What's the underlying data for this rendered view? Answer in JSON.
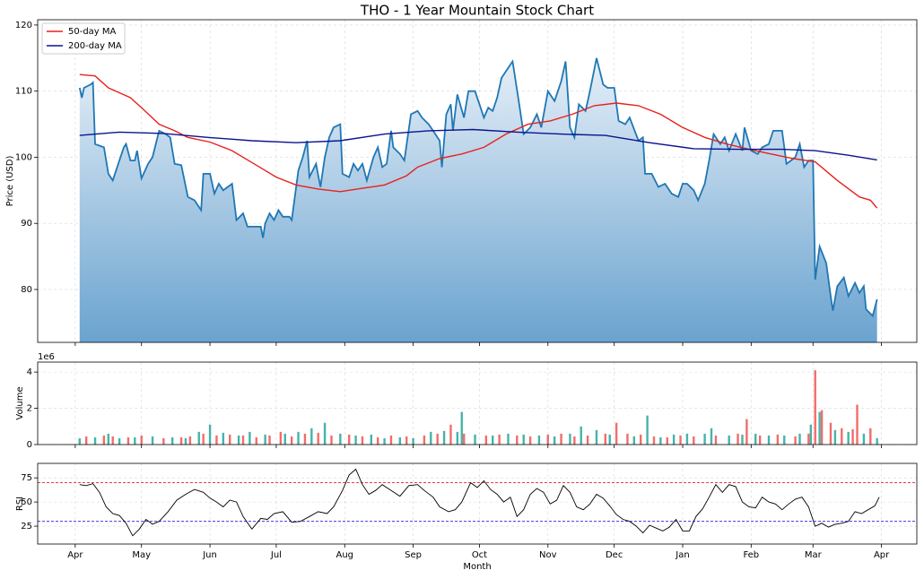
{
  "chart_data": [
    {
      "type": "area",
      "title": "THO - 1 Year Mountain Stock Chart",
      "ylabel": "Price (USD)",
      "color": "#1f77b4",
      "xlim": [
        -17,
        381
      ],
      "ylim": [
        72,
        120.8
      ],
      "yticks": [
        80,
        90,
        100,
        110,
        120
      ],
      "grid": true,
      "legend": "upper left",
      "x": [
        2,
        3,
        4,
        7,
        8,
        9,
        13,
        15,
        17,
        19,
        22,
        23,
        25,
        27,
        28,
        30,
        33,
        35,
        38,
        41,
        43,
        45,
        48,
        51,
        54,
        57,
        58,
        61,
        63,
        65,
        67,
        69,
        71,
        73,
        76,
        78,
        81,
        84,
        85,
        86,
        88,
        90,
        92,
        94,
        97,
        98,
        101,
        103,
        105,
        106,
        109,
        111,
        113,
        115,
        117,
        120,
        121,
        124,
        126,
        128,
        130,
        132,
        135,
        137,
        139,
        141,
        143,
        144,
        147,
        149,
        152,
        155,
        157,
        160,
        162,
        165,
        166,
        168,
        170,
        171,
        173,
        176,
        178,
        181,
        183,
        185,
        187,
        189,
        191,
        193,
        195,
        198,
        201,
        203,
        206,
        209,
        211,
        214,
        217,
        220,
        222,
        224,
        226,
        228,
        231,
        233,
        236,
        239,
        241,
        244,
        246,
        249,
        251,
        255,
        257,
        258,
        261,
        264,
        267,
        270,
        273,
        275,
        277,
        280,
        282,
        285,
        287,
        289,
        292,
        294,
        296,
        299,
        302,
        303,
        306,
        309,
        311,
        314,
        316,
        320,
        322,
        326,
        328,
        330,
        332,
        334,
        335,
        337,
        340,
        342,
        343,
        345,
        348,
        350,
        353,
        355,
        357,
        358,
        361,
        363
      ],
      "values": [
        110.5,
        109,
        110.5,
        111,
        111.3,
        102,
        101.5,
        97.5,
        96.5,
        98.5,
        101.5,
        102,
        99.5,
        99.5,
        101,
        96.8,
        99,
        100,
        104,
        103.5,
        103,
        99,
        98.8,
        94,
        93.5,
        92,
        97.5,
        97.5,
        94.5,
        96,
        95,
        95.5,
        96,
        90.5,
        91.5,
        89.5,
        89.5,
        89.5,
        87.8,
        90,
        91.5,
        90.5,
        92,
        91,
        91,
        90.5,
        98,
        100,
        102.5,
        97,
        99,
        95.5,
        100,
        103,
        104.5,
        105,
        97.5,
        97,
        99,
        98,
        99,
        96.5,
        100,
        101.5,
        98.5,
        99,
        104,
        101.5,
        100.5,
        99.5,
        106.5,
        107,
        106,
        105,
        104,
        102.5,
        98.5,
        106.5,
        108,
        104,
        109.5,
        106,
        110,
        110,
        108,
        106,
        107.5,
        107,
        109,
        112,
        113,
        114.5,
        108,
        103.5,
        104.5,
        106.5,
        104.5,
        110,
        108.5,
        111.5,
        114.5,
        104.5,
        103,
        108,
        107,
        110,
        115,
        111,
        110.5,
        110.5,
        105.5,
        105,
        106,
        102.5,
        103,
        97.5,
        97.5,
        95.5,
        96,
        94.5,
        94,
        96,
        96,
        95,
        93.5,
        96,
        99.5,
        103.5,
        102,
        103,
        101,
        103.5,
        101,
        104.5,
        101,
        100.5,
        101.5,
        102,
        104,
        104,
        99,
        100,
        102,
        98.5,
        99.5,
        99.5,
        81.5,
        86.5,
        84,
        79,
        76.8,
        80.5,
        81.8,
        79,
        81,
        79.5,
        80.5,
        77,
        76,
        78.5
      ],
      "series": [
        {
          "name": "50-day MA",
          "color": "#e8211d",
          "x": [
            2,
            9,
            15,
            25,
            30,
            38,
            45,
            51,
            61,
            71,
            81,
            91,
            100,
            110,
            120,
            130,
            140,
            150,
            155,
            165,
            175,
            185,
            195,
            205,
            215,
            225,
            235,
            245,
            255,
            265,
            275,
            285,
            295,
            305,
            315,
            325,
            335,
            345,
            355,
            360,
            363
          ],
          "values": [
            112.5,
            112.3,
            110.5,
            109,
            107.5,
            105,
            104,
            103,
            102.3,
            101,
            99,
            97,
            95.8,
            95.2,
            94.8,
            95.3,
            95.8,
            97.2,
            98.5,
            99.8,
            100.5,
            101.5,
            103.5,
            105,
            105.5,
            106.5,
            107.8,
            108.2,
            107.8,
            106.5,
            104.5,
            103,
            102,
            101.2,
            100.5,
            99.8,
            99.3,
            96.5,
            94,
            93.5,
            92.3
          ]
        },
        {
          "name": "200-day MA",
          "color": "#0b138f",
          "x": [
            2,
            20,
            40,
            60,
            80,
            100,
            120,
            140,
            160,
            180,
            200,
            220,
            240,
            260,
            280,
            300,
            320,
            335,
            350,
            363
          ],
          "values": [
            103.3,
            103.8,
            103.6,
            103,
            102.5,
            102.2,
            102.5,
            103.5,
            104,
            104.2,
            103.8,
            103.5,
            103.3,
            102.2,
            101.3,
            101.2,
            101.2,
            101,
            100.3,
            99.6
          ]
        }
      ]
    },
    {
      "type": "bar",
      "ylabel": "Volume",
      "y_offset_label": "1e6",
      "xlim": [
        -17,
        381
      ],
      "ylim": [
        0,
        4.55
      ],
      "yticks": [
        0,
        2,
        4
      ],
      "grid": true,
      "series": [
        {
          "color": "#26a69a",
          "x": [
            2,
            9,
            15,
            20,
            27,
            35,
            44,
            50,
            56,
            61,
            67,
            74,
            79,
            86,
            95,
            101,
            107,
            113,
            120,
            127,
            134,
            140,
            147,
            153,
            161,
            167,
            173,
            175,
            181,
            189,
            196,
            203,
            210,
            217,
            224,
            229,
            236,
            242,
            253,
            259,
            265,
            271,
            277,
            285,
            288,
            296,
            302,
            308,
            314,
            321,
            328,
            333,
            337,
            344,
            350,
            357,
            363
          ],
          "values": [
            0.35,
            0.4,
            0.6,
            0.35,
            0.4,
            0.45,
            0.4,
            0.35,
            0.7,
            1.1,
            0.65,
            0.5,
            0.7,
            0.55,
            0.6,
            0.7,
            0.9,
            1.2,
            0.6,
            0.5,
            0.55,
            0.35,
            0.4,
            0.35,
            0.7,
            0.75,
            0.7,
            1.8,
            0.55,
            0.5,
            0.6,
            0.55,
            0.5,
            0.45,
            0.6,
            1.0,
            0.8,
            0.55,
            0.45,
            1.6,
            0.4,
            0.55,
            0.6,
            0.6,
            0.9,
            0.5,
            0.55,
            0.6,
            0.5,
            0.5,
            0.6,
            1.1,
            1.8,
            0.8,
            0.7,
            0.6,
            0.35
          ]
        },
        {
          "color": "#ef5350",
          "x": [
            5,
            13,
            17,
            24,
            30,
            40,
            48,
            52,
            58,
            64,
            70,
            76,
            82,
            88,
            93,
            98,
            104,
            110,
            116,
            124,
            130,
            137,
            143,
            150,
            158,
            164,
            170,
            176,
            186,
            192,
            200,
            206,
            214,
            220,
            226,
            232,
            240,
            245,
            250,
            256,
            262,
            268,
            274,
            280,
            290,
            300,
            304,
            310,
            318,
            326,
            332,
            335,
            338,
            342,
            347,
            352,
            354,
            360
          ],
          "values": [
            0.45,
            0.5,
            0.45,
            0.4,
            0.5,
            0.35,
            0.4,
            0.45,
            0.6,
            0.5,
            0.55,
            0.5,
            0.4,
            0.5,
            0.7,
            0.45,
            0.6,
            0.65,
            0.5,
            0.55,
            0.45,
            0.4,
            0.5,
            0.45,
            0.5,
            0.6,
            1.1,
            0.6,
            0.5,
            0.55,
            0.5,
            0.45,
            0.55,
            0.6,
            0.45,
            0.5,
            0.6,
            1.2,
            0.6,
            0.55,
            0.45,
            0.4,
            0.5,
            0.45,
            0.5,
            0.6,
            1.4,
            0.5,
            0.55,
            0.45,
            0.6,
            4.1,
            1.9,
            1.2,
            0.9,
            0.85,
            2.2,
            0.9
          ]
        }
      ]
    },
    {
      "type": "line",
      "ylabel": "RSI",
      "xlabel": "Month",
      "color": "#000000",
      "xlim": [
        -17,
        381
      ],
      "ylim": [
        6.5,
        90
      ],
      "yticks": [
        25,
        50,
        75
      ],
      "grid": true,
      "xticks": [
        {
          "value": 0,
          "label": "Apr"
        },
        {
          "value": 30,
          "label": "May"
        },
        {
          "value": 61,
          "label": "Jun"
        },
        {
          "value": 91,
          "label": "Jul"
        },
        {
          "value": 122,
          "label": "Aug"
        },
        {
          "value": 153,
          "label": "Sep"
        },
        {
          "value": 183,
          "label": "Oct"
        },
        {
          "value": 214,
          "label": "Nov"
        },
        {
          "value": 244,
          "label": "Dec"
        },
        {
          "value": 275,
          "label": "Jan"
        },
        {
          "value": 306,
          "label": "Feb"
        },
        {
          "value": 334,
          "label": "Mar"
        },
        {
          "value": 365,
          "label": "Apr"
        }
      ],
      "hlines": [
        {
          "value": 70,
          "color": "#e8211d"
        },
        {
          "value": 30,
          "color": "#1f1fd6"
        }
      ],
      "x": [
        2,
        5,
        8,
        11,
        14,
        17,
        20,
        23,
        26,
        29,
        32,
        35,
        38,
        42,
        46,
        50,
        54,
        58,
        61,
        64,
        67,
        70,
        73,
        76,
        80,
        84,
        87,
        90,
        94,
        98,
        102,
        106,
        110,
        114,
        117,
        121,
        124,
        127,
        130,
        133,
        136,
        139,
        143,
        147,
        151,
        155,
        158,
        162,
        165,
        169,
        172,
        175,
        179,
        182,
        185,
        188,
        191,
        194,
        197,
        200,
        203,
        206,
        209,
        212,
        215,
        218,
        221,
        224,
        227,
        230,
        233,
        236,
        239,
        242,
        245,
        248,
        251,
        254,
        257,
        260,
        263,
        266,
        269,
        272,
        275,
        278,
        281,
        284,
        287,
        290,
        293,
        296,
        299,
        302,
        305,
        308,
        311,
        314,
        317,
        320,
        323,
        326,
        329,
        332,
        335,
        338,
        341,
        344,
        347,
        350,
        353,
        356,
        359,
        362,
        364
      ],
      "values": [
        68,
        67,
        69,
        60,
        45,
        38,
        36,
        28,
        15,
        22,
        32,
        27,
        30,
        40,
        52,
        58,
        63,
        60,
        54,
        50,
        45,
        52,
        50,
        35,
        22,
        33,
        32,
        38,
        40,
        29,
        30,
        35,
        40,
        38,
        45,
        62,
        78,
        84,
        68,
        58,
        62,
        68,
        62,
        56,
        67,
        68,
        62,
        55,
        45,
        40,
        42,
        50,
        70,
        65,
        72,
        63,
        58,
        50,
        55,
        35,
        42,
        58,
        64,
        60,
        48,
        52,
        67,
        60,
        45,
        42,
        48,
        58,
        54,
        46,
        37,
        32,
        30,
        25,
        18,
        26,
        23,
        20,
        24,
        32,
        20,
        20,
        35,
        43,
        55,
        68,
        60,
        68,
        66,
        50,
        45,
        44,
        55,
        50,
        48,
        42,
        48,
        53,
        55,
        45,
        25,
        28,
        24,
        27,
        28,
        30,
        40,
        38,
        42,
        46,
        55
      ]
    }
  ]
}
